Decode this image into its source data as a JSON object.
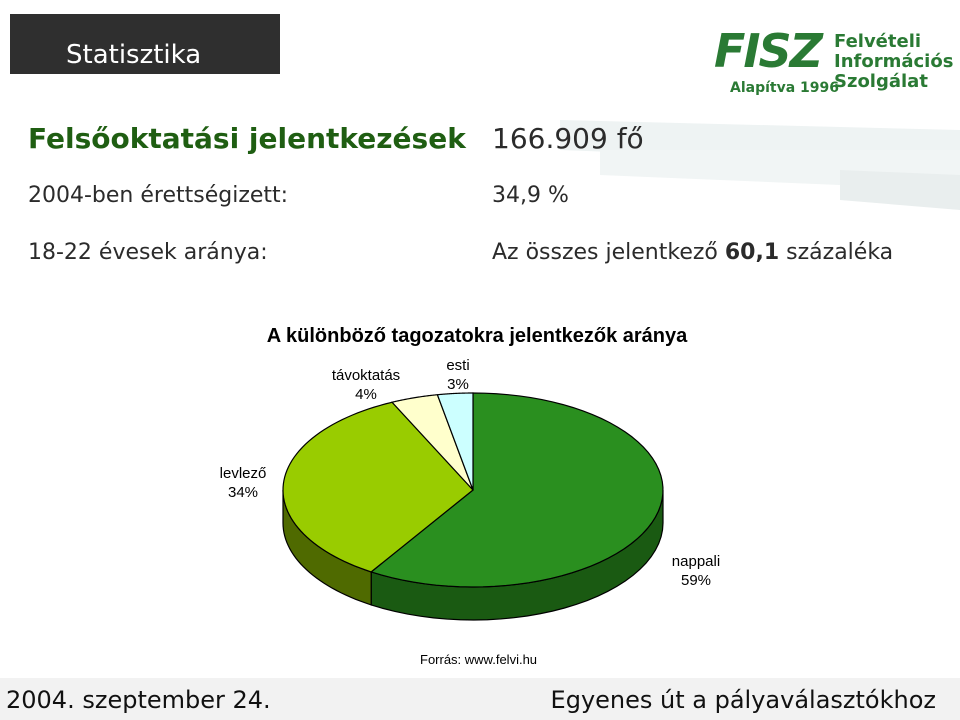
{
  "header": {
    "title": "Statisztika"
  },
  "logo": {
    "name": "FISZ",
    "line1": "Felvételi",
    "line2": "Információs",
    "line3": "Szolgálat",
    "founded": "Alapítva 1996"
  },
  "stats": [
    {
      "label": "Felsőoktatási jelentkezések",
      "value_text": "166.909 fő"
    },
    {
      "label": "2004-ben érettségizett:",
      "value_text": "34,9 %"
    },
    {
      "label": "18-22 évesek aránya:",
      "value_prefix": "Az összes jelentkező ",
      "value_bold": "60,1",
      "value_suffix": " százaléka"
    }
  ],
  "chart_data": {
    "type": "pie",
    "title": "A különböző tagozatokra jelentkezők aránya",
    "slices": [
      {
        "label": "nappali",
        "value": 59,
        "value_label": "59%",
        "color": "#2a8f1f",
        "side": "#1a5a12"
      },
      {
        "label": "levlező",
        "value": 34,
        "value_label": "34%",
        "color": "#99cc00",
        "side": "#4f6a00"
      },
      {
        "label": "távoktatás",
        "value": 4,
        "value_label": "4%",
        "color": "#ffffcc",
        "side": "#b8b890"
      },
      {
        "label": "esti",
        "value": 3,
        "value_label": "3%",
        "color": "#ccffff",
        "side": "#8fb3b3"
      }
    ]
  },
  "source": "Forrás: www.felvi.hu",
  "footer": {
    "left": "2004. szeptember 24.",
    "right": "Egyenes út a pályaválasztókhoz"
  },
  "colors": {
    "green_title": "#1f5e12",
    "header_bg": "#2f2f2f"
  }
}
